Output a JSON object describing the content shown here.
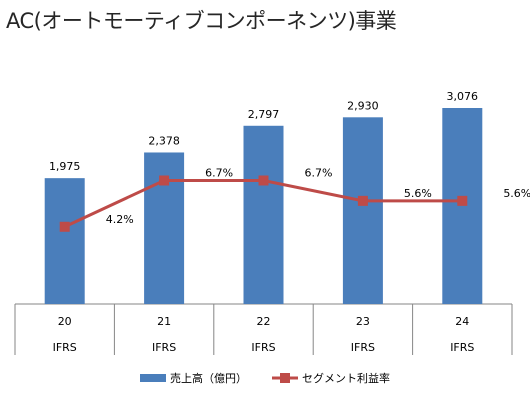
{
  "chart_data": {
    "type": "bar",
    "title": "AC(オートモーティブコンポーネンツ)事業",
    "categories": [
      "20",
      "21",
      "22",
      "23",
      "24"
    ],
    "category_sublabels": [
      "IFRS",
      "IFRS",
      "IFRS",
      "IFRS",
      "IFRS"
    ],
    "series": [
      {
        "name": "売上高（億円）",
        "type": "bar",
        "values": [
          1975,
          2378,
          2797,
          2930,
          3076
        ],
        "value_labels": [
          "1,975",
          "2,378",
          "2,797",
          "2,930",
          "3,076"
        ],
        "color": "#4a7ebb"
      },
      {
        "name": "セグメント利益率",
        "type": "line",
        "values": [
          4.2,
          6.7,
          6.7,
          5.6,
          5.6
        ],
        "value_labels": [
          "4.2%",
          "6.7%",
          "6.7%",
          "5.6%",
          "5.6%"
        ],
        "color": "#be4b48"
      }
    ],
    "legend_position": "bottom",
    "grid": false,
    "ylim_bar": [
      0,
      3400
    ],
    "ylim_line": [
      0,
      12
    ]
  }
}
